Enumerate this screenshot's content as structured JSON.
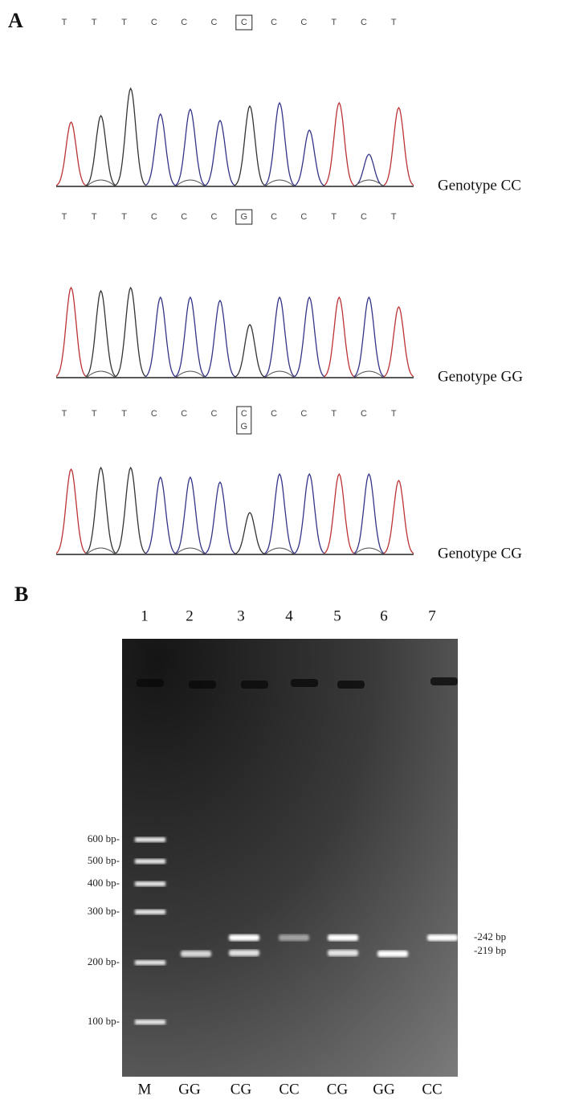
{
  "panel_a": {
    "label": "A",
    "traces": [
      {
        "bases": [
          "T",
          "T",
          "T",
          "C",
          "C",
          "C",
          "C",
          "C",
          "C",
          "T",
          "C",
          "T"
        ],
        "genotype": "Genotype CC"
      },
      {
        "bases": [
          "T",
          "T",
          "T",
          "C",
          "C",
          "C",
          "G",
          "C",
          "C",
          "T",
          "C",
          "T"
        ],
        "genotype": "Genotype GG"
      },
      {
        "bases": [
          "T",
          "T",
          "T",
          "C",
          "C",
          "C",
          "C",
          "C",
          "C",
          "T",
          "C",
          "T"
        ],
        "heterozygous_base": "G",
        "genotype": "Genotype CG"
      }
    ]
  },
  "panel_b": {
    "label": "B",
    "lane_numbers": [
      "1",
      "2",
      "3",
      "4",
      "5",
      "6",
      "7"
    ],
    "lane_genotypes": [
      "M",
      "GG",
      "CG",
      "CC",
      "CG",
      "GG",
      "CC"
    ],
    "ladder_labels": [
      "600 bp-",
      "500 bp-",
      "400 bp-",
      "300 bp-",
      "200 bp-",
      "100 bp-"
    ],
    "band_labels": [
      "-242 bp",
      "-219 bp"
    ]
  }
}
